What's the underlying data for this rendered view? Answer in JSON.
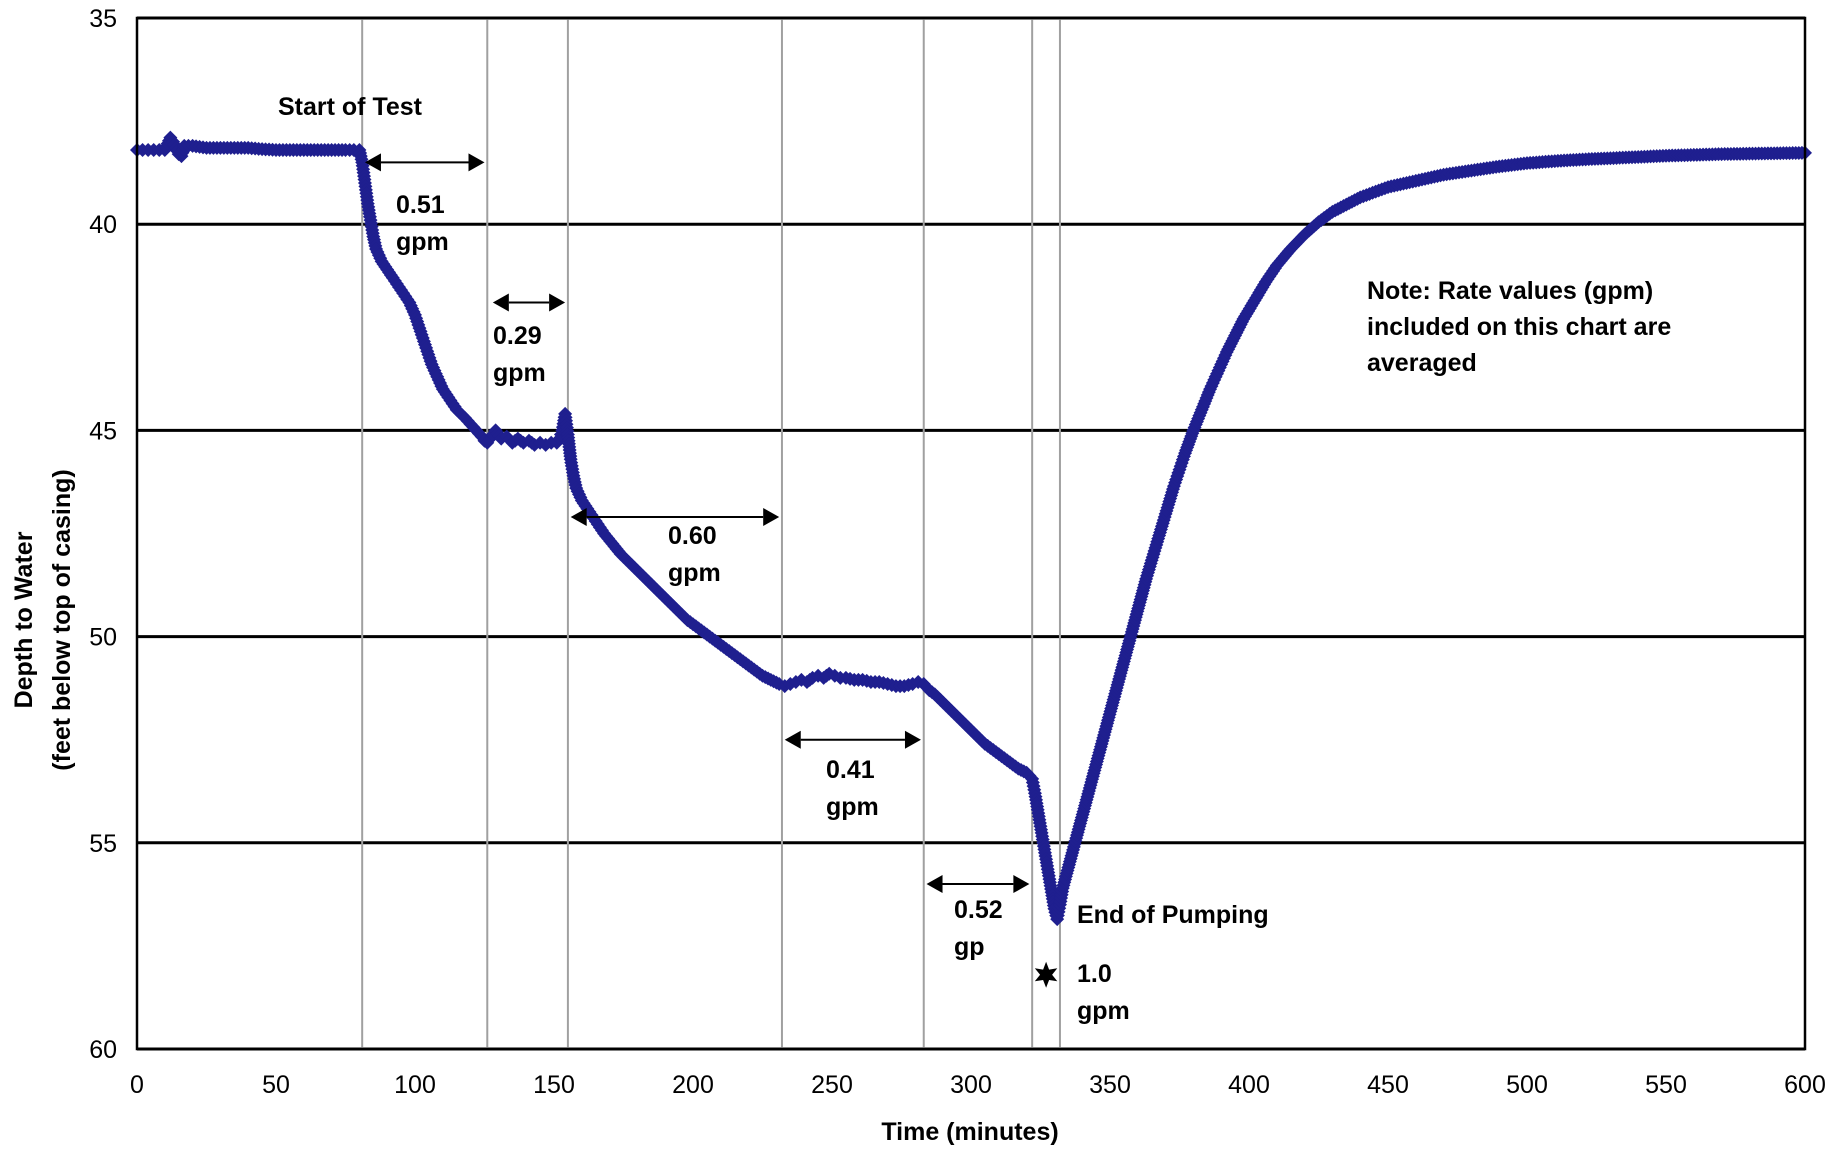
{
  "chart_data": {
    "type": "scatter",
    "title": "",
    "xlabel": "Time (minutes)",
    "ylabel_line1": "Depth to Water",
    "ylabel_line2": "(feet below top of casing)",
    "xlim": [
      0,
      600
    ],
    "ylim": [
      35,
      60
    ],
    "y_inverted": true,
    "x_ticks": [
      "0",
      "50",
      "100",
      "150",
      "200",
      "250",
      "300",
      "350",
      "400",
      "450",
      "500",
      "550",
      "600"
    ],
    "y_ticks": [
      "35",
      "40",
      "45",
      "50",
      "55",
      "60"
    ],
    "grid": "horizontal major gridlines",
    "series_color": "#1f1f8f",
    "pumping_step_boundaries_min": [
      81,
      126,
      155,
      232,
      283,
      322,
      332
    ],
    "annotations": {
      "start": "Start of Test",
      "end": "End of Pumping",
      "note": [
        "Note: Rate values (gpm)",
        "included on this chart are",
        "averaged"
      ]
    },
    "rates": [
      {
        "x0": 82,
        "x1": 125,
        "y": 38.5,
        "line1": "0.51",
        "line2": "gpm"
      },
      {
        "x0": 128,
        "x1": 154,
        "y": 41.9,
        "line1": "0.29",
        "line2": "gpm"
      },
      {
        "x0": 156,
        "x1": 231,
        "y": 47.1,
        "line1": "0.60",
        "line2": "gpm"
      },
      {
        "x0": 233,
        "x1": 282,
        "y": 52.5,
        "line1": "0.41",
        "line2": "gpm"
      },
      {
        "x0": 284,
        "x1": 321,
        "y": 56.0,
        "line1": "0.52",
        "line2": "gp"
      }
    ],
    "star_point": {
      "x": 327,
      "y": 58.2,
      "line1": "1.0",
      "line2": "gpm"
    },
    "series": [
      {
        "name": "",
        "points": [
          [
            0,
            38.2
          ],
          [
            2,
            38.2
          ],
          [
            4,
            38.2
          ],
          [
            6,
            38.2
          ],
          [
            8,
            38.2
          ],
          [
            10,
            38.2
          ],
          [
            11,
            38.05
          ],
          [
            12,
            37.9
          ],
          [
            13,
            38.0
          ],
          [
            14,
            38.15
          ],
          [
            15,
            38.3
          ],
          [
            16,
            38.35
          ],
          [
            17,
            38.1
          ],
          [
            20,
            38.1
          ],
          [
            25,
            38.15
          ],
          [
            30,
            38.15
          ],
          [
            35,
            38.15
          ],
          [
            40,
            38.15
          ],
          [
            45,
            38.18
          ],
          [
            50,
            38.2
          ],
          [
            55,
            38.2
          ],
          [
            60,
            38.2
          ],
          [
            65,
            38.2
          ],
          [
            70,
            38.2
          ],
          [
            75,
            38.2
          ],
          [
            78,
            38.2
          ],
          [
            80,
            38.2
          ],
          [
            81,
            38.5
          ],
          [
            82,
            39.0
          ],
          [
            83,
            39.5
          ],
          [
            84,
            39.9
          ],
          [
            85,
            40.3
          ],
          [
            86,
            40.6
          ],
          [
            88,
            40.9
          ],
          [
            90,
            41.1
          ],
          [
            92,
            41.3
          ],
          [
            95,
            41.6
          ],
          [
            98,
            41.9
          ],
          [
            100,
            42.2
          ],
          [
            102,
            42.6
          ],
          [
            104,
            43.0
          ],
          [
            106,
            43.4
          ],
          [
            108,
            43.7
          ],
          [
            110,
            44.0
          ],
          [
            112,
            44.2
          ],
          [
            115,
            44.5
          ],
          [
            118,
            44.7
          ],
          [
            120,
            44.85
          ],
          [
            122,
            45.0
          ],
          [
            124,
            45.15
          ],
          [
            125,
            45.25
          ],
          [
            126,
            45.3
          ],
          [
            127,
            45.2
          ],
          [
            128,
            45.1
          ],
          [
            129,
            45.0
          ],
          [
            131,
            45.2
          ],
          [
            133,
            45.15
          ],
          [
            135,
            45.3
          ],
          [
            137,
            45.2
          ],
          [
            139,
            45.3
          ],
          [
            141,
            45.25
          ],
          [
            143,
            45.35
          ],
          [
            145,
            45.3
          ],
          [
            147,
            45.35
          ],
          [
            149,
            45.3
          ],
          [
            151,
            45.3
          ],
          [
            152,
            45.2
          ],
          [
            153,
            45.0
          ],
          [
            154,
            44.6
          ],
          [
            155,
            45.1
          ],
          [
            156,
            45.7
          ],
          [
            157,
            46.1
          ],
          [
            158,
            46.4
          ],
          [
            160,
            46.7
          ],
          [
            162,
            46.9
          ],
          [
            165,
            47.2
          ],
          [
            168,
            47.5
          ],
          [
            171,
            47.75
          ],
          [
            174,
            48.0
          ],
          [
            177,
            48.2
          ],
          [
            180,
            48.4
          ],
          [
            183,
            48.6
          ],
          [
            186,
            48.8
          ],
          [
            189,
            49.0
          ],
          [
            192,
            49.2
          ],
          [
            195,
            49.4
          ],
          [
            198,
            49.6
          ],
          [
            201,
            49.75
          ],
          [
            204,
            49.9
          ],
          [
            207,
            50.05
          ],
          [
            210,
            50.2
          ],
          [
            213,
            50.35
          ],
          [
            216,
            50.5
          ],
          [
            219,
            50.65
          ],
          [
            222,
            50.8
          ],
          [
            225,
            50.95
          ],
          [
            228,
            51.05
          ],
          [
            231,
            51.15
          ],
          [
            233,
            51.2
          ],
          [
            235,
            51.15
          ],
          [
            237,
            51.1
          ],
          [
            239,
            51.05
          ],
          [
            241,
            51.1
          ],
          [
            243,
            51.0
          ],
          [
            245,
            50.95
          ],
          [
            247,
            51.0
          ],
          [
            249,
            50.9
          ],
          [
            251,
            50.95
          ],
          [
            253,
            51.0
          ],
          [
            255,
            51.0
          ],
          [
            258,
            51.05
          ],
          [
            261,
            51.05
          ],
          [
            264,
            51.1
          ],
          [
            267,
            51.1
          ],
          [
            270,
            51.15
          ],
          [
            273,
            51.2
          ],
          [
            276,
            51.2
          ],
          [
            279,
            51.15
          ],
          [
            281,
            51.1
          ],
          [
            283,
            51.15
          ],
          [
            285,
            51.3
          ],
          [
            287,
            51.4
          ],
          [
            290,
            51.6
          ],
          [
            293,
            51.8
          ],
          [
            296,
            52.0
          ],
          [
            299,
            52.2
          ],
          [
            302,
            52.4
          ],
          [
            305,
            52.6
          ],
          [
            308,
            52.75
          ],
          [
            311,
            52.9
          ],
          [
            314,
            53.05
          ],
          [
            317,
            53.2
          ],
          [
            320,
            53.3
          ],
          [
            322,
            53.45
          ],
          [
            323,
            53.8
          ],
          [
            324,
            54.2
          ],
          [
            325,
            54.6
          ],
          [
            326,
            55.0
          ],
          [
            327,
            55.4
          ],
          [
            328,
            55.8
          ],
          [
            329,
            56.2
          ],
          [
            330,
            56.6
          ],
          [
            331,
            56.85
          ],
          [
            332,
            56.5
          ],
          [
            333,
            56.1
          ],
          [
            335,
            55.6
          ],
          [
            337,
            55.1
          ],
          [
            339,
            54.6
          ],
          [
            341,
            54.1
          ],
          [
            343,
            53.6
          ],
          [
            345,
            53.1
          ],
          [
            347,
            52.6
          ],
          [
            349,
            52.1
          ],
          [
            351,
            51.6
          ],
          [
            353,
            51.1
          ],
          [
            355,
            50.6
          ],
          [
            357,
            50.1
          ],
          [
            359,
            49.6
          ],
          [
            361,
            49.1
          ],
          [
            363,
            48.6
          ],
          [
            365,
            48.15
          ],
          [
            367,
            47.7
          ],
          [
            369,
            47.25
          ],
          [
            371,
            46.8
          ],
          [
            373,
            46.35
          ],
          [
            375,
            45.95
          ],
          [
            377,
            45.55
          ],
          [
            380,
            45.0
          ],
          [
            383,
            44.5
          ],
          [
            386,
            44.0
          ],
          [
            389,
            43.55
          ],
          [
            392,
            43.1
          ],
          [
            395,
            42.7
          ],
          [
            398,
            42.3
          ],
          [
            402,
            41.85
          ],
          [
            406,
            41.4
          ],
          [
            410,
            41.0
          ],
          [
            415,
            40.6
          ],
          [
            420,
            40.25
          ],
          [
            425,
            39.95
          ],
          [
            430,
            39.7
          ],
          [
            440,
            39.35
          ],
          [
            450,
            39.1
          ],
          [
            460,
            38.95
          ],
          [
            470,
            38.8
          ],
          [
            480,
            38.7
          ],
          [
            490,
            38.6
          ],
          [
            500,
            38.52
          ],
          [
            510,
            38.47
          ],
          [
            520,
            38.43
          ],
          [
            530,
            38.4
          ],
          [
            540,
            38.37
          ],
          [
            550,
            38.34
          ],
          [
            560,
            38.32
          ],
          [
            570,
            38.3
          ],
          [
            580,
            38.29
          ],
          [
            590,
            38.28
          ],
          [
            600,
            38.27
          ]
        ]
      }
    ]
  }
}
